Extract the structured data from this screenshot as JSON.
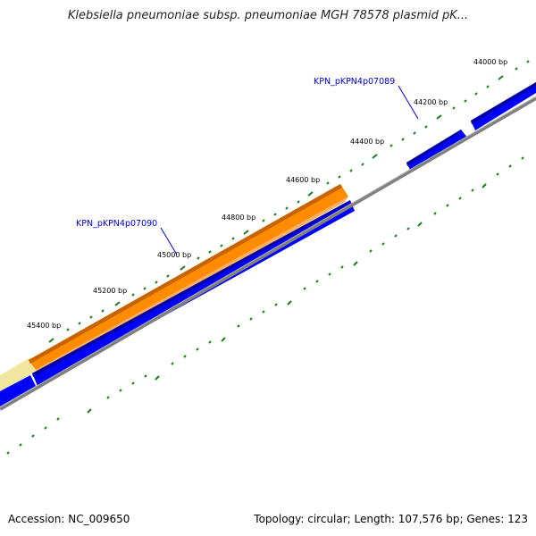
{
  "title": "Klebsiella pneumoniae subsp. pneumoniae MGH 78578 plasmid pK...",
  "footer": {
    "accession": "Accession: NC_009650",
    "summary": "Topology: circular; Length: 107,576 bp; Genes: 123"
  },
  "ruler_labels": [
    "44000 bp",
    "44200 bp",
    "44400 bp",
    "44600 bp",
    "44800 bp",
    "45000 bp",
    "45200 bp",
    "45400 bp"
  ],
  "gene_labels": [
    "KPN_pKPN4p07089",
    "KPN_pKPN4p07090"
  ],
  "colors": {
    "gene_forward": "#0000ff",
    "gene_highlight": "#ff8c00",
    "gene_faded": "#f0e6a0",
    "backbone": "#808080",
    "tick": "#1f7a1f",
    "label_blue": "#0000cc"
  }
}
